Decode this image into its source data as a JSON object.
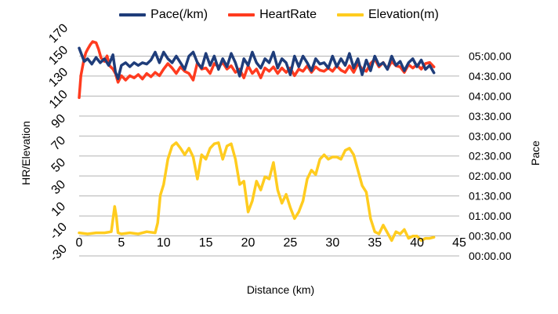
{
  "chart_data": {
    "type": "line",
    "xlabel": "Distance (km)",
    "ylabel_left": "HR/Elevation",
    "ylabel_right": "Pace",
    "xlim": [
      0,
      45
    ],
    "x_ticks": [
      0,
      5,
      10,
      15,
      20,
      25,
      30,
      35,
      40,
      45
    ],
    "ylim_left": [
      -30,
      170
    ],
    "y_ticks_left": [
      -30,
      -10,
      10,
      30,
      50,
      70,
      90,
      110,
      130,
      150,
      170
    ],
    "ylim_right_seconds": [
      0,
      330
    ],
    "y_ticks_right": [
      "00:00.00",
      "00:30.00",
      "01:00.00",
      "01:30.00",
      "02:00.00",
      "02:30.00",
      "03:00.00",
      "03:30.00",
      "04:00.00",
      "04:30.00",
      "05:00.00"
    ],
    "grid": true,
    "legend_position": "top",
    "series": [
      {
        "name": "Pace(/km)",
        "axis": "right",
        "color": "#1f3d7a",
        "x": [
          0,
          0.3,
          0.6,
          1,
          1.5,
          2,
          2.5,
          3,
          3.5,
          4,
          4.3,
          4.6,
          5,
          5.5,
          6,
          6.5,
          7,
          7.5,
          8,
          8.5,
          9,
          9.5,
          10,
          10.5,
          11,
          11.5,
          12,
          12.5,
          13,
          13.5,
          14,
          14.5,
          15,
          15.5,
          16,
          16.5,
          17,
          17.5,
          18,
          18.5,
          19,
          19.5,
          20,
          20.5,
          21,
          21.5,
          22,
          22.5,
          23,
          23.5,
          24,
          24.5,
          25,
          25.5,
          26,
          26.5,
          27,
          27.5,
          28,
          28.5,
          29,
          29.5,
          30,
          30.5,
          31,
          31.5,
          32,
          32.5,
          33,
          33.5,
          34,
          34.5,
          35,
          35.5,
          36,
          36.5,
          37,
          37.5,
          38,
          38.5,
          39,
          39.5,
          40,
          40.5,
          41,
          41.5,
          42
        ],
        "y": [
          312,
          302,
          292,
          296,
          288,
          298,
          290,
          296,
          286,
          302,
          276,
          266,
          286,
          290,
          284,
          290,
          286,
          290,
          288,
          294,
          306,
          290,
          306,
          296,
          290,
          300,
          290,
          280,
          300,
          306,
          290,
          282,
          304,
          286,
          300,
          280,
          296,
          284,
          304,
          290,
          270,
          296,
          286,
          306,
          290,
          282,
          296,
          290,
          306,
          282,
          296,
          290,
          272,
          300,
          284,
          300,
          290,
          278,
          296,
          288,
          290,
          282,
          300,
          284,
          296,
          286,
          304,
          282,
          296,
          272,
          294,
          278,
          300,
          286,
          290,
          280,
          300,
          286,
          292,
          278,
          290,
          296,
          284,
          294,
          280,
          286,
          275
        ],
        "values_formatted": []
      },
      {
        "name": "HeartRate",
        "axis": "left",
        "color": "#ff3b1f",
        "x": [
          0,
          0.2,
          0.4,
          0.6,
          0.8,
          1,
          1.3,
          1.6,
          2,
          2.3,
          2.6,
          3,
          3.3,
          3.6,
          4,
          4.3,
          4.6,
          5,
          5.5,
          6,
          6.5,
          7,
          7.5,
          8,
          8.5,
          9,
          9.5,
          10,
          10.5,
          11,
          11.5,
          12,
          12.5,
          13,
          13.5,
          14,
          14.5,
          15,
          15.5,
          16,
          16.5,
          17,
          17.5,
          18,
          18.5,
          19,
          19.5,
          20,
          20.5,
          21,
          21.5,
          22,
          22.5,
          23,
          23.5,
          24,
          24.5,
          25,
          25.5,
          26,
          26.5,
          27,
          27.5,
          28,
          28.5,
          29,
          29.5,
          30,
          30.5,
          31,
          31.5,
          32,
          32.5,
          33,
          33.5,
          34,
          34.5,
          35,
          35.5,
          36,
          36.5,
          37,
          37.5,
          38,
          38.5,
          39,
          39.5,
          40,
          40.5,
          41,
          41.5,
          42
        ],
        "y": [
          114,
          134,
          142,
          150,
          155,
          158,
          162,
          165,
          164,
          158,
          150,
          147,
          152,
          143,
          140,
          136,
          128,
          134,
          130,
          134,
          132,
          135,
          131,
          136,
          133,
          137,
          134,
          140,
          145,
          141,
          136,
          142,
          138,
          136,
          130,
          146,
          140,
          141,
          136,
          145,
          142,
          146,
          140,
          143,
          137,
          140,
          132,
          143,
          136,
          140,
          132,
          141,
          138,
          142,
          136,
          141,
          137,
          141,
          134,
          140,
          138,
          143,
          137,
          142,
          139,
          138,
          141,
          138,
          143,
          139,
          137,
          143,
          137,
          145,
          140,
          138,
          145,
          149,
          142,
          146,
          140,
          147,
          143,
          142,
          137,
          144,
          141,
          144,
          140,
          145,
          146,
          142
        ]
      },
      {
        "name": "Elevation(m)",
        "axis": "left",
        "color": "#ffcc1f",
        "x": [
          0,
          1,
          2,
          3,
          3.8,
          4.2,
          4.4,
          4.6,
          5,
          6,
          7,
          8,
          9,
          9.3,
          9.6,
          10,
          10.5,
          11,
          11.5,
          12,
          12.5,
          13,
          13.5,
          14,
          14.5,
          15,
          15.5,
          16,
          16.5,
          17,
          17.5,
          18,
          18.5,
          19,
          19.5,
          20,
          20.5,
          21,
          21.5,
          22,
          22.5,
          23,
          23.5,
          24,
          24.5,
          25,
          25.5,
          26,
          26.5,
          27,
          27.5,
          28,
          28.5,
          29,
          29.5,
          30,
          30.5,
          31,
          31.5,
          32,
          32.5,
          33,
          33.5,
          34,
          34.5,
          35,
          35.5,
          36,
          36.5,
          37,
          37.5,
          38,
          38.5,
          39,
          39.5,
          40,
          40.5,
          41,
          41.5,
          42
        ],
        "y": [
          -9,
          -10,
          -9,
          -9,
          -8,
          15,
          6,
          -9,
          -10,
          -9,
          -10,
          -8,
          -9,
          0,
          25,
          35,
          58,
          70,
          73,
          68,
          62,
          68,
          60,
          40,
          62,
          58,
          68,
          72,
          73,
          58,
          70,
          72,
          58,
          35,
          38,
          10,
          20,
          38,
          30,
          42,
          40,
          55,
          30,
          18,
          26,
          14,
          4,
          10,
          20,
          40,
          48,
          44,
          58,
          62,
          58,
          60,
          60,
          58,
          66,
          68,
          62,
          48,
          34,
          28,
          4,
          -8,
          -10,
          -2,
          -9,
          -16,
          -8,
          -10,
          -6,
          -14,
          -12,
          -12,
          -16,
          -14,
          -14,
          -13
        ]
      }
    ]
  }
}
